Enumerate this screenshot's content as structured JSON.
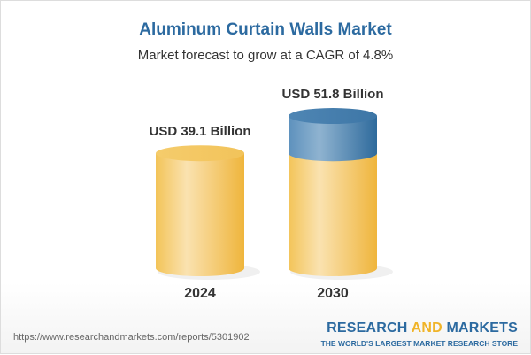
{
  "chart_data": {
    "type": "bar",
    "title": "Aluminum Curtain Walls Market",
    "subtitle": "Market forecast to grow at a CAGR of 4.8%",
    "categories": [
      "2024",
      "2030"
    ],
    "values": [
      39.1,
      51.8
    ],
    "data_labels": [
      "USD 39.1 Billion",
      "USD 51.8 Billion"
    ],
    "colors": {
      "base": "#f2c14e",
      "growth": "#3b77a8",
      "title": "#2c6aa0"
    }
  },
  "footer": {
    "url": "https://www.researchandmarkets.com/reports/5301902",
    "logo_a": "RESEARCH ",
    "logo_and": "AND",
    "logo_b": " MARKETS",
    "tagline": "THE WORLD'S LARGEST MARKET RESEARCH STORE"
  }
}
